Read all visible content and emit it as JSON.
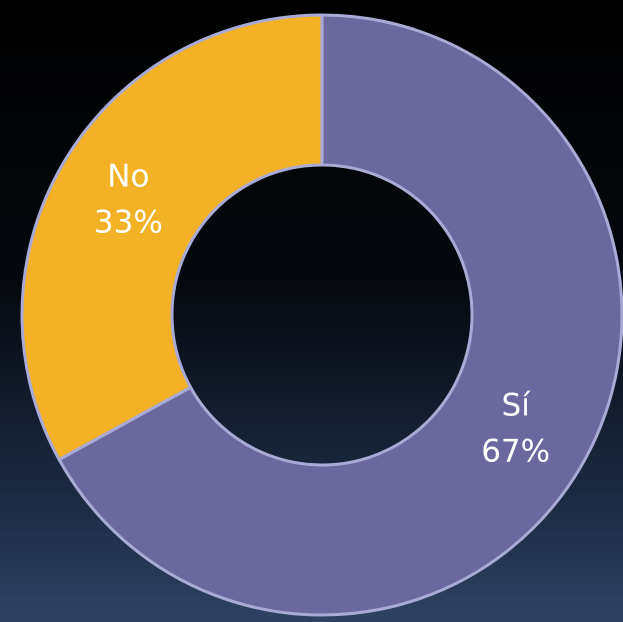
{
  "chart_data": {
    "type": "pie",
    "donut": true,
    "categories": [
      "Sí",
      "No"
    ],
    "values": [
      67,
      33
    ],
    "value_labels": [
      "67%",
      "33%"
    ],
    "colors": [
      "#6a689f",
      "#f3b126"
    ]
  }
}
